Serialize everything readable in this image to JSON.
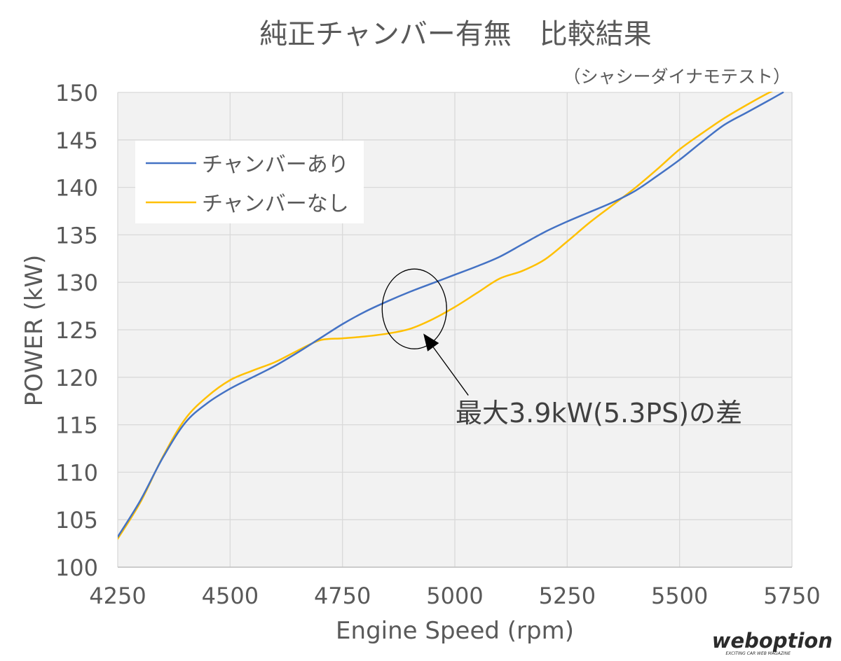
{
  "chart_data": {
    "type": "line",
    "title": "純正チャンバー有無　比較結果",
    "subtitle": "（シャシーダイナモテスト）",
    "xlabel": "Engine Speed (rpm)",
    "ylabel": "POWER (kW)",
    "xlim": [
      4250,
      5750
    ],
    "ylim": [
      100,
      150
    ],
    "x_ticks": [
      "4250",
      "4500",
      "4750",
      "5000",
      "5250",
      "5500",
      "5750"
    ],
    "y_ticks": [
      "100",
      "105",
      "110",
      "115",
      "120",
      "125",
      "130",
      "135",
      "140",
      "145",
      "150"
    ],
    "grid": true,
    "legend_position": "top-left",
    "series": [
      {
        "name": "チャンバーあり",
        "color": "#4472c4",
        "x": [
          4250,
          4300,
          4350,
          4400,
          4450,
          4500,
          4550,
          4600,
          4650,
          4700,
          4750,
          4800,
          4850,
          4900,
          4950,
          5000,
          5050,
          5100,
          5150,
          5200,
          5250,
          5300,
          5350,
          5400,
          5450,
          5500,
          5550,
          5600,
          5650,
          5700,
          5730
        ],
        "y": [
          103.2,
          107.0,
          111.5,
          115.2,
          117.3,
          118.8,
          120.0,
          121.2,
          122.6,
          124.1,
          125.6,
          126.9,
          128.0,
          129.0,
          129.9,
          130.8,
          131.7,
          132.7,
          134.0,
          135.3,
          136.4,
          137.4,
          138.4,
          139.6,
          141.2,
          142.9,
          144.8,
          146.6,
          147.9,
          149.2,
          150.0
        ]
      },
      {
        "name": "チャンバーなし",
        "color": "#ffc000",
        "x": [
          4250,
          4300,
          4350,
          4400,
          4450,
          4500,
          4550,
          4600,
          4650,
          4700,
          4750,
          4800,
          4850,
          4900,
          4950,
          5000,
          5050,
          5100,
          5150,
          5200,
          5250,
          5300,
          5350,
          5400,
          5450,
          5500,
          5550,
          5600,
          5650,
          5700,
          5720
        ],
        "y": [
          103.0,
          106.8,
          111.6,
          115.6,
          118.0,
          119.7,
          120.7,
          121.6,
          122.8,
          123.9,
          124.1,
          124.3,
          124.6,
          125.1,
          126.1,
          127.4,
          128.9,
          130.4,
          131.2,
          132.4,
          134.3,
          136.3,
          138.1,
          139.9,
          141.9,
          144.0,
          145.7,
          147.3,
          148.7,
          150.0,
          150.4
        ]
      }
    ],
    "annotation": {
      "text": "最大3.9kW(5.3PS)の差",
      "circle_center": [
        4910,
        127.2
      ],
      "arrow_tip": [
        4930,
        124.6
      ],
      "arrow_tail": [
        5030,
        118.1
      ]
    }
  },
  "watermark": {
    "brand": "weboption",
    "tagline": "EXCITING CAR WEB MAGAZINE"
  }
}
